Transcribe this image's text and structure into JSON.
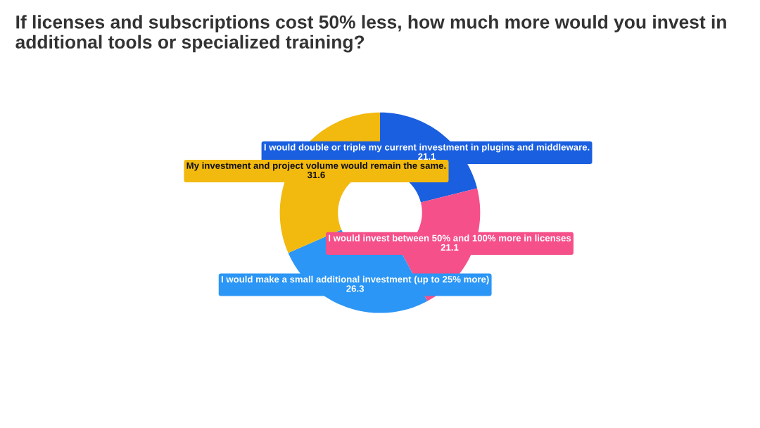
{
  "chart_data": {
    "type": "donut",
    "title": "If licenses and subscriptions cost 50% less, how much more would you invest in additional tools or specialized training?",
    "categories": [
      "I would double or triple my current investment in plugins and middleware.",
      "I would invest between 50% and 100% more in licenses",
      "I would make a small additional investment (up to 25% more)",
      "My investment and project volume would remain the same."
    ],
    "values": [
      21.1,
      21.1,
      26.3,
      31.6
    ],
    "colors": [
      "#1a5fe0",
      "#f5508a",
      "#2b96f5",
      "#f2b90f"
    ],
    "data_labels": true
  }
}
